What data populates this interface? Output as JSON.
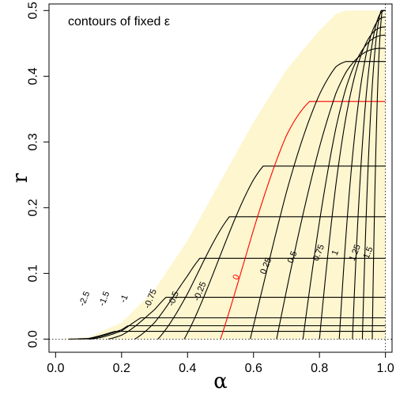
{
  "chart_data": {
    "type": "contour",
    "title": "",
    "annotation": "contours of fixed ε",
    "xlabel": "α",
    "ylabel": "r",
    "xlim": [
      -0.02,
      1.02
    ],
    "ylim": [
      -0.02,
      0.51
    ],
    "x_ticks": [
      0.0,
      0.2,
      0.4,
      0.6,
      0.8,
      1.0
    ],
    "x_tick_labels": [
      "0.0",
      "0.2",
      "0.4",
      "0.6",
      "0.8",
      "1.0"
    ],
    "y_ticks": [
      0.0,
      0.1,
      0.2,
      0.3,
      0.4,
      0.5
    ],
    "y_tick_labels": [
      "0.0",
      "0.1",
      "0.2",
      "0.3",
      "0.4",
      "0.5"
    ],
    "grid": false,
    "reference_lines": [
      {
        "orientation": "horizontal",
        "value": 0.0,
        "style": "dotted"
      },
      {
        "orientation": "vertical",
        "value": 1.0,
        "style": "dotted"
      }
    ],
    "region": {
      "fill_color": "#fdf6cf",
      "boundary_points": [
        [
          0.0,
          0.0
        ],
        [
          0.1,
          0.003
        ],
        [
          0.2,
          0.025
        ],
        [
          0.3,
          0.075
        ],
        [
          0.4,
          0.15
        ],
        [
          0.5,
          0.24
        ],
        [
          0.6,
          0.33
        ],
        [
          0.7,
          0.41
        ],
        [
          0.8,
          0.47
        ],
        [
          0.85,
          0.495
        ],
        [
          0.88,
          0.5
        ],
        [
          1.0,
          0.5
        ]
      ]
    },
    "line_colors": {
      "default": "#000000",
      "zero": "#ff0000"
    },
    "contours": [
      {
        "level": -2.5,
        "label": "-2.5",
        "foot": 0.04
      },
      {
        "level": -2.0,
        "label": "",
        "foot": 0.07
      },
      {
        "level": -1.5,
        "label": "-1.5",
        "foot": 0.1
      },
      {
        "level": -1.0,
        "label": "-1",
        "foot": 0.16
      },
      {
        "level": -0.75,
        "label": "-0.75",
        "foot": 0.24
      },
      {
        "level": -0.5,
        "label": "-0.5",
        "foot": 0.31
      },
      {
        "level": -0.25,
        "label": "-0.25",
        "foot": 0.39
      },
      {
        "level": 0.0,
        "label": "0",
        "foot": 0.5
      },
      {
        "level": 0.25,
        "label": "0.25",
        "foot": 0.59
      },
      {
        "level": 0.5,
        "label": "0.5",
        "foot": 0.67
      },
      {
        "level": 0.75,
        "label": "0.75",
        "foot": 0.75
      },
      {
        "level": 1.0,
        "label": "1",
        "foot": 0.8
      },
      {
        "level": 1.25,
        "label": "1.25",
        "foot": 0.86
      },
      {
        "level": 1.5,
        "label": "1.5",
        "foot": 0.9
      },
      {
        "level": 1.75,
        "label": "",
        "foot": 0.93
      },
      {
        "level": 2.0,
        "label": "2",
        "foot": 0.96
      }
    ]
  }
}
